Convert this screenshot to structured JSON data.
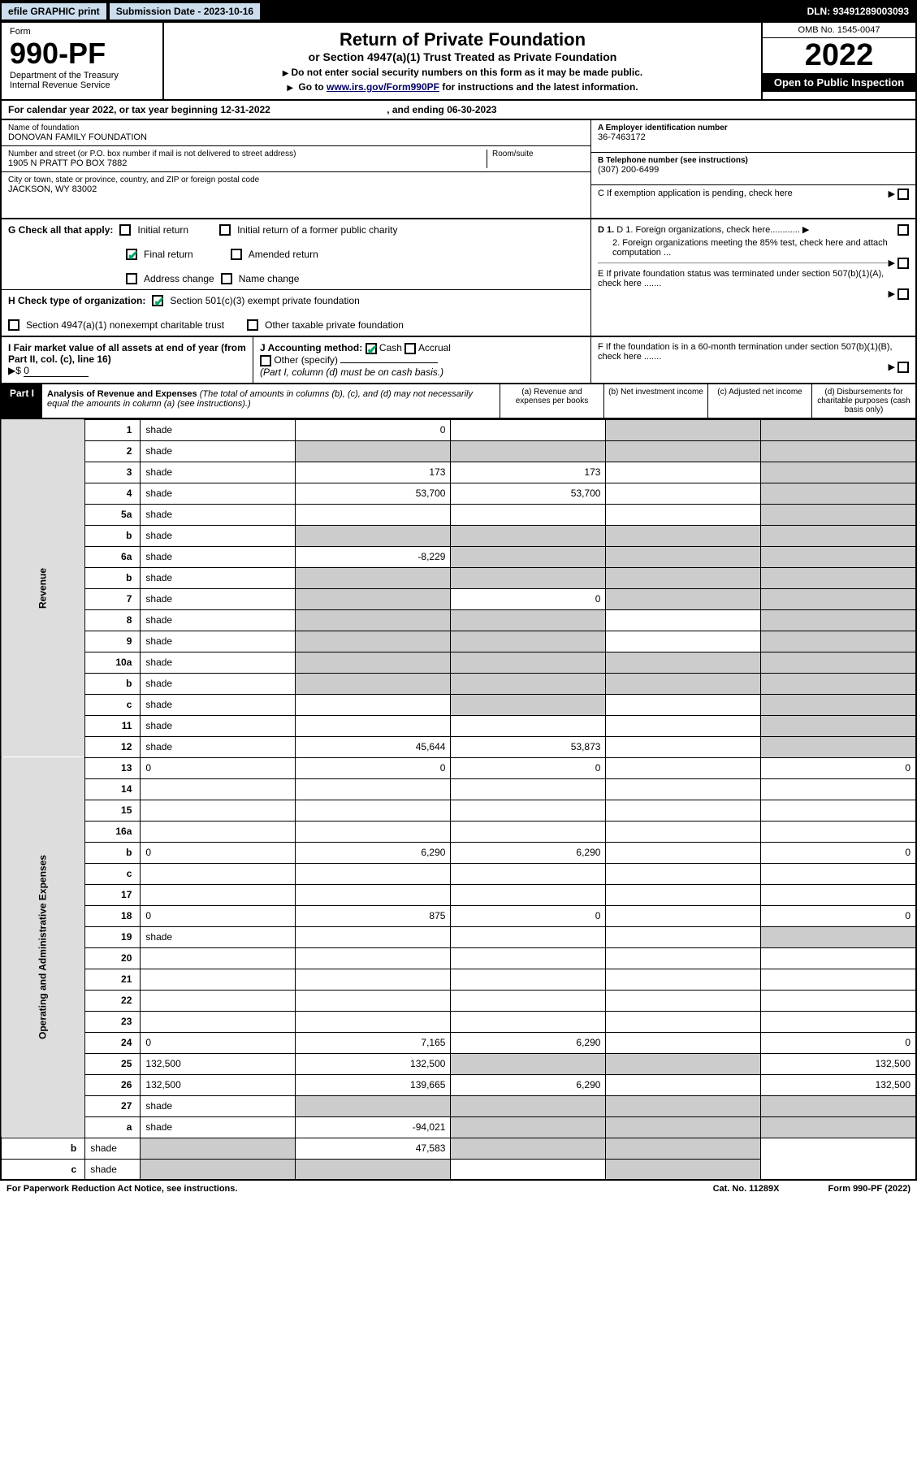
{
  "top": {
    "efile": "efile GRAPHIC print",
    "sub_date_label": "Submission Date - 2023-10-16",
    "dln": "DLN: 93491289003093"
  },
  "header": {
    "form_label": "Form",
    "form_number": "990-PF",
    "dept1": "Department of the Treasury",
    "dept2": "Internal Revenue Service",
    "title": "Return of Private Foundation",
    "subtitle": "or Section 4947(a)(1) Trust Treated as Private Foundation",
    "instr1": "Do not enter social security numbers on this form as it may be made public.",
    "instr2_pre": "Go to ",
    "instr2_link": "www.irs.gov/Form990PF",
    "instr2_post": " for instructions and the latest information.",
    "omb": "OMB No. 1545-0047",
    "year": "2022",
    "open": "Open to Public Inspection"
  },
  "cal_year": {
    "text_pre": "For calendar year 2022, or tax year beginning ",
    "begin": "12-31-2022",
    "mid": " , and ending ",
    "end": "06-30-2023"
  },
  "info": {
    "name_lbl": "Name of foundation",
    "name": "DONOVAN FAMILY FOUNDATION",
    "addr_lbl": "Number and street (or P.O. box number if mail is not delivered to street address)",
    "addr": "1905 N PRATT PO BOX 7882",
    "room_lbl": "Room/suite",
    "city_lbl": "City or town, state or province, country, and ZIP or foreign postal code",
    "city": "JACKSON, WY  83002",
    "ein_lbl": "A Employer identification number",
    "ein": "36-7463172",
    "phone_lbl": "B Telephone number (see instructions)",
    "phone": "(307) 200-6499",
    "c_lbl": "C If exemption application is pending, check here",
    "d1": "D 1. Foreign organizations, check here............",
    "d2": "2. Foreign organizations meeting the 85% test, check here and attach computation ...",
    "e_lbl": "E  If private foundation status was terminated under section 507(b)(1)(A), check here .......",
    "f_lbl": "F  If the foundation is in a 60-month termination under section 507(b)(1)(B), check here .......",
    "g_lbl": "G Check all that apply:",
    "g_initial": "Initial return",
    "g_initial_former": "Initial return of a former public charity",
    "g_final": "Final return",
    "g_amended": "Amended return",
    "g_addr": "Address change",
    "g_name": "Name change",
    "h_lbl": "H Check type of organization:",
    "h_501c3": "Section 501(c)(3) exempt private foundation",
    "h_4947": "Section 4947(a)(1) nonexempt charitable trust",
    "h_other_tax": "Other taxable private foundation",
    "i_lbl": "I Fair market value of all assets at end of year (from Part II, col. (c), line 16)",
    "i_val": "0",
    "j_lbl": "J Accounting method:",
    "j_cash": "Cash",
    "j_accrual": "Accrual",
    "j_other": "Other (specify)",
    "j_note": "(Part I, column (d) must be on cash basis.)"
  },
  "part1": {
    "label": "Part I",
    "title": "Analysis of Revenue and Expenses",
    "title_note": " (The total of amounts in columns (b), (c), and (d) may not necessarily equal the amounts in column (a) (see instructions).)",
    "col_a": "(a)   Revenue and expenses per books",
    "col_b": "(b)  Net investment income",
    "col_c": "(c)  Adjusted net income",
    "col_d": "(d)  Disbursements for charitable purposes (cash basis only)"
  },
  "side": {
    "rev": "Revenue",
    "exp": "Operating and Administrative Expenses"
  },
  "rows": [
    {
      "n": "1",
      "d": "shade",
      "a": "0",
      "b": "",
      "c": "shade"
    },
    {
      "n": "2",
      "d": "shade",
      "a": "shade",
      "b": "shade",
      "c": "shade"
    },
    {
      "n": "3",
      "d": "shade",
      "a": "173",
      "b": "173",
      "c": ""
    },
    {
      "n": "4",
      "d": "shade",
      "a": "53,700",
      "b": "53,700",
      "c": ""
    },
    {
      "n": "5a",
      "d": "shade",
      "a": "",
      "b": "",
      "c": ""
    },
    {
      "n": "b",
      "d": "shade",
      "a": "shade",
      "b": "shade",
      "c": "shade"
    },
    {
      "n": "6a",
      "d": "shade",
      "a": "-8,229",
      "b": "shade",
      "c": "shade"
    },
    {
      "n": "b",
      "d": "shade",
      "a": "shade",
      "b": "shade",
      "c": "shade"
    },
    {
      "n": "7",
      "d": "shade",
      "a": "shade",
      "b": "0",
      "c": "shade"
    },
    {
      "n": "8",
      "d": "shade",
      "a": "shade",
      "b": "shade",
      "c": ""
    },
    {
      "n": "9",
      "d": "shade",
      "a": "shade",
      "b": "shade",
      "c": ""
    },
    {
      "n": "10a",
      "d": "shade",
      "a": "shade",
      "b": "shade",
      "c": "shade"
    },
    {
      "n": "b",
      "d": "shade",
      "a": "shade",
      "b": "shade",
      "c": "shade"
    },
    {
      "n": "c",
      "d": "shade",
      "a": "",
      "b": "shade",
      "c": ""
    },
    {
      "n": "11",
      "d": "shade",
      "a": "",
      "b": "",
      "c": ""
    },
    {
      "n": "12",
      "d": "shade",
      "a": "45,644",
      "b": "53,873",
      "c": ""
    },
    {
      "n": "13",
      "d": "0",
      "a": "0",
      "b": "0",
      "c": ""
    },
    {
      "n": "14",
      "d": "",
      "a": "",
      "b": "",
      "c": ""
    },
    {
      "n": "15",
      "d": "",
      "a": "",
      "b": "",
      "c": ""
    },
    {
      "n": "16a",
      "d": "",
      "a": "",
      "b": "",
      "c": ""
    },
    {
      "n": "b",
      "d": "0",
      "a": "6,290",
      "b": "6,290",
      "c": ""
    },
    {
      "n": "c",
      "d": "",
      "a": "",
      "b": "",
      "c": ""
    },
    {
      "n": "17",
      "d": "",
      "a": "",
      "b": "",
      "c": ""
    },
    {
      "n": "18",
      "d": "0",
      "a": "875",
      "b": "0",
      "c": ""
    },
    {
      "n": "19",
      "d": "shade",
      "a": "",
      "b": "",
      "c": ""
    },
    {
      "n": "20",
      "d": "",
      "a": "",
      "b": "",
      "c": ""
    },
    {
      "n": "21",
      "d": "",
      "a": "",
      "b": "",
      "c": ""
    },
    {
      "n": "22",
      "d": "",
      "a": "",
      "b": "",
      "c": ""
    },
    {
      "n": "23",
      "d": "",
      "a": "",
      "b": "",
      "c": ""
    },
    {
      "n": "24",
      "d": "0",
      "a": "7,165",
      "b": "6,290",
      "c": ""
    },
    {
      "n": "25",
      "d": "132,500",
      "a": "132,500",
      "b": "shade",
      "c": "shade"
    },
    {
      "n": "26",
      "d": "132,500",
      "a": "139,665",
      "b": "6,290",
      "c": ""
    },
    {
      "n": "27",
      "d": "shade",
      "a": "shade",
      "b": "shade",
      "c": "shade"
    },
    {
      "n": "a",
      "d": "shade",
      "a": "-94,021",
      "b": "shade",
      "c": "shade"
    },
    {
      "n": "b",
      "d": "shade",
      "a": "shade",
      "b": "47,583",
      "c": "shade"
    },
    {
      "n": "c",
      "d": "shade",
      "a": "shade",
      "b": "shade",
      "c": ""
    }
  ],
  "footer": {
    "left": "For Paperwork Reduction Act Notice, see instructions.",
    "mid": "Cat. No. 11289X",
    "right": "Form 990-PF (2022)"
  },
  "colors": {
    "shade": "#cccccc",
    "header_bg": "#000000",
    "link": "#003366"
  }
}
